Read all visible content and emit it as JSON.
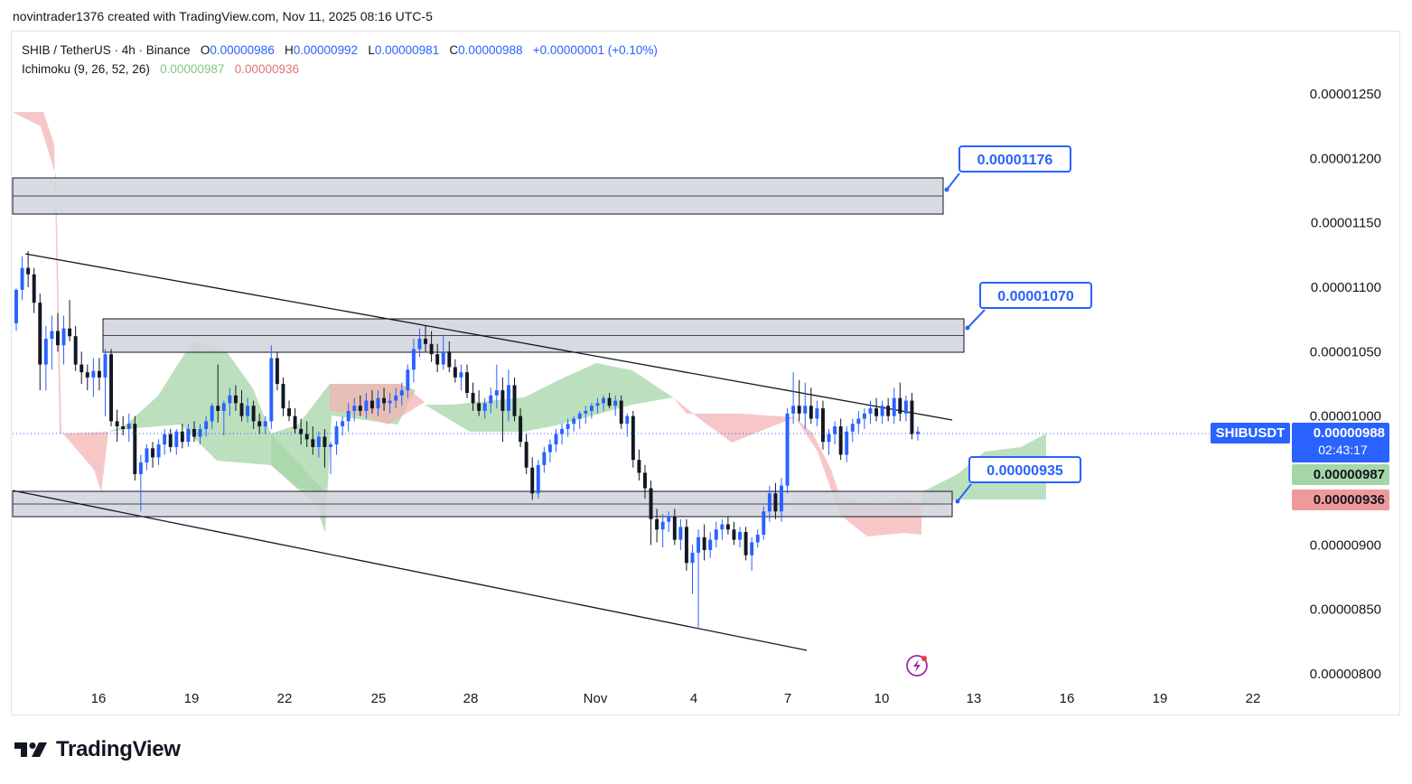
{
  "caption": "novintrader1376 created with TradingView.com, Nov 11, 2025 08:16 UTC-5",
  "legend": {
    "symbol": "SHIB / TetherUS · 4h · Binance",
    "o_label": "O",
    "o": "0.00000986",
    "h_label": "H",
    "h": "0.00000992",
    "l_label": "L",
    "l": "0.00000981",
    "c_label": "C",
    "c": "0.00000988",
    "change": "+0.00000001 (+0.10%)",
    "indicator": "Ichimoku (9, 26, 52, 26)",
    "ind_v1": "0.00000987",
    "ind_v2": "0.00000936"
  },
  "price_tags": {
    "symbol": "SHIBUSDT",
    "last": "0.00000988",
    "countdown": "02:43:17",
    "span_a": "0.00000987",
    "span_b": "0.00000936"
  },
  "callouts": [
    "0.00001176",
    "0.00001070",
    "0.00000935"
  ],
  "brand": "TradingView",
  "colors": {
    "up": "#2962ff",
    "down": "#131722",
    "cloud_bull": "#a5d6a7",
    "cloud_bear": "#f4b4b4",
    "zone": "#d1d4dc",
    "accent": "#2962ff"
  },
  "chart_data": {
    "type": "candlestick",
    "timeframe": "4h",
    "y_axis_ticks": [
      "0.00001250",
      "0.00001200",
      "0.00001150",
      "0.00001100",
      "0.00001050",
      "0.00001000",
      "0.00000950",
      "0.00000900",
      "0.00000850",
      "0.00000800"
    ],
    "x_axis_ticks": [
      "16",
      "19",
      "22",
      "25",
      "28",
      "Nov",
      "4",
      "7",
      "10",
      "13",
      "16",
      "19",
      "22"
    ],
    "ylim": [
      8e-06,
      1.25e-05
    ],
    "last_price": 9.88e-06,
    "zones": [
      {
        "x0": 13.8,
        "x1": 12.1,
        "y_low": 1.16e-05,
        "y_high": 1.188e-05
      },
      {
        "x0": 16.8,
        "x1": 12.8,
        "y_low": 1.05e-05,
        "y_high": 1.076e-05
      },
      {
        "x0": 13.8,
        "x1": 12.4,
        "y_low": 9.25e-06,
        "y_high": 9.44e-06
      }
    ],
    "trendlines": [
      {
        "x0": 14.3,
        "y0": 1.128e-05,
        "x1": 12.7,
        "y1": 9.96e-06
      },
      {
        "x0": 13.8,
        "y0": 9.38e-06,
        "x1": 7.6,
        "y1": 8.19e-06
      }
    ],
    "candles": [
      {
        "o": 1.072e-05,
        "h": 1.099e-05,
        "l": 1.066e-05,
        "c": 1.098e-05
      },
      {
        "o": 1.098e-05,
        "h": 1.124e-05,
        "l": 1.09e-05,
        "c": 1.115e-05
      },
      {
        "o": 1.115e-05,
        "h": 1.128e-05,
        "l": 1.1e-05,
        "c": 1.11e-05
      },
      {
        "o": 1.11e-05,
        "h": 1.115e-05,
        "l": 1.08e-05,
        "c": 1.088e-05
      },
      {
        "o": 1.088e-05,
        "h": 1.095e-05,
        "l": 1.02e-05,
        "c": 1.04e-05
      },
      {
        "o": 1.04e-05,
        "h": 1.07e-05,
        "l": 1.02e-05,
        "c": 1.06e-05
      },
      {
        "o": 1.06e-05,
        "h": 1.078e-05,
        "l": 1.036e-05,
        "c": 1.066e-05
      },
      {
        "o": 1.066e-05,
        "h": 1.08e-05,
        "l": 1.05e-05,
        "c": 1.055e-05
      },
      {
        "o": 1.055e-05,
        "h": 1.078e-05,
        "l": 1.04e-05,
        "c": 1.068e-05
      },
      {
        "o": 1.068e-05,
        "h": 1.09e-05,
        "l": 1.058e-05,
        "c": 1.062e-05
      },
      {
        "o": 1.062e-05,
        "h": 1.07e-05,
        "l": 1.035e-05,
        "c": 1.04e-05
      },
      {
        "o": 1.04e-05,
        "h": 1.05e-05,
        "l": 1.025e-05,
        "c": 1.034e-05
      },
      {
        "o": 1.034e-05,
        "h": 1.04e-05,
        "l": 1.02e-05,
        "c": 1.03e-05
      },
      {
        "o": 1.03e-05,
        "h": 1.045e-05,
        "l": 1.015e-05,
        "c": 1.035e-05
      },
      {
        "o": 1.035e-05,
        "h": 1.045e-05,
        "l": 1.02e-05,
        "c": 1.03e-05
      },
      {
        "o": 1.03e-05,
        "h": 1.052e-05,
        "l": 1e-05,
        "c": 1.048e-05
      },
      {
        "o": 1.048e-05,
        "h": 1.052e-05,
        "l": 9.92e-06,
        "c": 9.96e-06
      },
      {
        "o": 9.96e-06,
        "h": 1.005e-05,
        "l": 9.8e-06,
        "c": 9.92e-06
      },
      {
        "o": 9.92e-06,
        "h": 1e-05,
        "l": 9.85e-06,
        "c": 9.9e-06
      },
      {
        "o": 9.9e-06,
        "h": 1.002e-05,
        "l": 9.8e-06,
        "c": 9.94e-06
      },
      {
        "o": 9.94e-06,
        "h": 1e-05,
        "l": 9.5e-06,
        "c": 9.55e-06
      },
      {
        "o": 9.55e-06,
        "h": 9.7e-06,
        "l": 9.26e-06,
        "c": 9.64e-06
      },
      {
        "o": 9.64e-06,
        "h": 9.78e-06,
        "l": 9.58e-06,
        "c": 9.75e-06
      },
      {
        "o": 9.75e-06,
        "h": 9.8e-06,
        "l": 9.6e-06,
        "c": 9.68e-06
      },
      {
        "o": 9.68e-06,
        "h": 9.82e-06,
        "l": 9.62e-06,
        "c": 9.78e-06
      },
      {
        "o": 9.78e-06,
        "h": 9.9e-06,
        "l": 9.7e-06,
        "c": 9.86e-06
      },
      {
        "o": 9.86e-06,
        "h": 9.9e-06,
        "l": 9.72e-06,
        "c": 9.76e-06
      },
      {
        "o": 9.76e-06,
        "h": 9.9e-06,
        "l": 9.7e-06,
        "c": 9.88e-06
      },
      {
        "o": 9.88e-06,
        "h": 9.94e-06,
        "l": 9.75e-06,
        "c": 9.8e-06
      },
      {
        "o": 9.8e-06,
        "h": 9.94e-06,
        "l": 9.76e-06,
        "c": 9.9e-06
      },
      {
        "o": 9.9e-06,
        "h": 9.96e-06,
        "l": 9.8e-06,
        "c": 9.84e-06
      },
      {
        "o": 9.84e-06,
        "h": 9.94e-06,
        "l": 9.78e-06,
        "c": 9.9e-06
      },
      {
        "o": 9.9e-06,
        "h": 1e-05,
        "l": 9.84e-06,
        "c": 9.96e-06
      },
      {
        "o": 9.96e-06,
        "h": 1.01e-05,
        "l": 9.9e-06,
        "c": 1.008e-05
      },
      {
        "o": 1.008e-05,
        "h": 1.04e-05,
        "l": 9.95e-06,
        "c": 1.004e-05
      },
      {
        "o": 1.004e-05,
        "h": 1.012e-05,
        "l": 9.85e-06,
        "c": 1.01e-05
      },
      {
        "o": 1.01e-05,
        "h": 1.022e-05,
        "l": 1e-05,
        "c": 1.016e-05
      },
      {
        "o": 1.016e-05,
        "h": 1.024e-05,
        "l": 1.004e-05,
        "c": 1.01e-05
      },
      {
        "o": 1.01e-05,
        "h": 1.02e-05,
        "l": 9.96e-06,
        "c": 1e-05
      },
      {
        "o": 1e-05,
        "h": 1.014e-05,
        "l": 9.95e-06,
        "c": 1.008e-05
      },
      {
        "o": 1.008e-05,
        "h": 1.012e-05,
        "l": 9.9e-06,
        "c": 9.96e-06
      },
      {
        "o": 9.96e-06,
        "h": 1.002e-05,
        "l": 9.86e-06,
        "c": 9.92e-06
      },
      {
        "o": 9.92e-06,
        "h": 1e-05,
        "l": 9.86e-06,
        "c": 9.96e-06
      },
      {
        "o": 9.96e-06,
        "h": 1.055e-05,
        "l": 9.9e-06,
        "c": 1.045e-05
      },
      {
        "o": 1.045e-05,
        "h": 1.05e-05,
        "l": 1.02e-05,
        "c": 1.025e-05
      },
      {
        "o": 1.025e-05,
        "h": 1.03e-05,
        "l": 1e-05,
        "c": 1.006e-05
      },
      {
        "o": 1.006e-05,
        "h": 1.012e-05,
        "l": 9.96e-06,
        "c": 1e-05
      },
      {
        "o": 1e-05,
        "h": 1.006e-05,
        "l": 9.86e-06,
        "c": 9.9e-06
      },
      {
        "o": 9.9e-06,
        "h": 9.98e-06,
        "l": 9.78e-06,
        "c": 9.86e-06
      },
      {
        "o": 9.86e-06,
        "h": 9.96e-06,
        "l": 9.76e-06,
        "c": 9.82e-06
      },
      {
        "o": 9.82e-06,
        "h": 9.92e-06,
        "l": 9.7e-06,
        "c": 9.76e-06
      },
      {
        "o": 9.76e-06,
        "h": 9.88e-06,
        "l": 9.68e-06,
        "c": 9.84e-06
      },
      {
        "o": 9.84e-06,
        "h": 9.9e-06,
        "l": 9.6e-06,
        "c": 9.76e-06
      },
      {
        "o": 9.76e-06,
        "h": 9.8e-06,
        "l": 9.55e-06,
        "c": 9.78e-06
      },
      {
        "o": 9.78e-06,
        "h": 9.96e-06,
        "l": 9.7e-06,
        "c": 9.92e-06
      },
      {
        "o": 9.92e-06,
        "h": 1e-05,
        "l": 9.85e-06,
        "c": 9.96e-06
      },
      {
        "o": 9.96e-06,
        "h": 1.01e-05,
        "l": 9.88e-06,
        "c": 1.004e-05
      },
      {
        "o": 1.004e-05,
        "h": 1.014e-05,
        "l": 9.96e-06,
        "c": 1.008e-05
      },
      {
        "o": 1.008e-05,
        "h": 1.016e-05,
        "l": 1e-05,
        "c": 1.004e-05
      },
      {
        "o": 1.004e-05,
        "h": 1.018e-05,
        "l": 9.98e-06,
        "c": 1.012e-05
      },
      {
        "o": 1.012e-05,
        "h": 1.02e-05,
        "l": 1.002e-05,
        "c": 1.006e-05
      },
      {
        "o": 1.006e-05,
        "h": 1.02e-05,
        "l": 1e-05,
        "c": 1.014e-05
      },
      {
        "o": 1.014e-05,
        "h": 1.022e-05,
        "l": 1.004e-05,
        "c": 1.01e-05
      },
      {
        "o": 1.01e-05,
        "h": 1.018e-05,
        "l": 1.002e-05,
        "c": 1.012e-05
      },
      {
        "o": 1.012e-05,
        "h": 1.022e-05,
        "l": 1.006e-05,
        "c": 1.016e-05
      },
      {
        "o": 1.016e-05,
        "h": 1.026e-05,
        "l": 1.008e-05,
        "c": 1.02e-05
      },
      {
        "o": 1.02e-05,
        "h": 1.04e-05,
        "l": 1.014e-05,
        "c": 1.036e-05
      },
      {
        "o": 1.036e-05,
        "h": 1.06e-05,
        "l": 1.026e-05,
        "c": 1.052e-05
      },
      {
        "o": 1.052e-05,
        "h": 1.068e-05,
        "l": 1.046e-05,
        "c": 1.06e-05
      },
      {
        "o": 1.06e-05,
        "h": 1.07e-05,
        "l": 1.05e-05,
        "c": 1.056e-05
      },
      {
        "o": 1.056e-05,
        "h": 1.066e-05,
        "l": 1.042e-05,
        "c": 1.048e-05
      },
      {
        "o": 1.048e-05,
        "h": 1.056e-05,
        "l": 1.034e-05,
        "c": 1.04e-05
      },
      {
        "o": 1.04e-05,
        "h": 1.062e-05,
        "l": 1.036e-05,
        "c": 1.05e-05
      },
      {
        "o": 1.05e-05,
        "h": 1.058e-05,
        "l": 1.034e-05,
        "c": 1.038e-05
      },
      {
        "o": 1.038e-05,
        "h": 1.044e-05,
        "l": 1.026e-05,
        "c": 1.03e-05
      },
      {
        "o": 1.03e-05,
        "h": 1.04e-05,
        "l": 1.02e-05,
        "c": 1.034e-05
      },
      {
        "o": 1.034e-05,
        "h": 1.04e-05,
        "l": 1.014e-05,
        "c": 1.018e-05
      },
      {
        "o": 1.018e-05,
        "h": 1.026e-05,
        "l": 1.004e-05,
        "c": 1.01e-05
      },
      {
        "o": 1.01e-05,
        "h": 1.02e-05,
        "l": 1e-05,
        "c": 1.004e-05
      },
      {
        "o": 1.004e-05,
        "h": 1.014e-05,
        "l": 9.98e-06,
        "c": 1.01e-05
      },
      {
        "o": 1.01e-05,
        "h": 1.022e-05,
        "l": 1.002e-05,
        "c": 1.016e-05
      },
      {
        "o": 1.016e-05,
        "h": 1.04e-05,
        "l": 1.006e-05,
        "c": 1.02e-05
      },
      {
        "o": 1.02e-05,
        "h": 1.03e-05,
        "l": 9.8e-06,
        "c": 1.004e-05
      },
      {
        "o": 1.004e-05,
        "h": 1.036e-05,
        "l": 9.96e-06,
        "c": 1.024e-05
      },
      {
        "o": 1.024e-05,
        "h": 1.03e-05,
        "l": 9.96e-06,
        "c": 1e-05
      },
      {
        "o": 1e-05,
        "h": 1.006e-05,
        "l": 9.76e-06,
        "c": 9.8e-06
      },
      {
        "o": 9.8e-06,
        "h": 9.86e-06,
        "l": 9.55e-06,
        "c": 9.6e-06
      },
      {
        "o": 9.6e-06,
        "h": 9.68e-06,
        "l": 9.35e-06,
        "c": 9.4e-06
      },
      {
        "o": 9.4e-06,
        "h": 9.66e-06,
        "l": 9.36e-06,
        "c": 9.62e-06
      },
      {
        "o": 9.62e-06,
        "h": 9.76e-06,
        "l": 9.56e-06,
        "c": 9.72e-06
      },
      {
        "o": 9.72e-06,
        "h": 9.82e-06,
        "l": 9.64e-06,
        "c": 9.78e-06
      },
      {
        "o": 9.78e-06,
        "h": 9.9e-06,
        "l": 9.72e-06,
        "c": 9.86e-06
      },
      {
        "o": 9.86e-06,
        "h": 9.94e-06,
        "l": 9.78e-06,
        "c": 9.9e-06
      },
      {
        "o": 9.9e-06,
        "h": 9.98e-06,
        "l": 9.84e-06,
        "c": 9.94e-06
      },
      {
        "o": 9.94e-06,
        "h": 1e-05,
        "l": 9.88e-06,
        "c": 9.98e-06
      },
      {
        "o": 9.98e-06,
        "h": 1.004e-05,
        "l": 9.9e-06,
        "c": 1.002e-05
      },
      {
        "o": 1.002e-05,
        "h": 1.008e-05,
        "l": 9.94e-06,
        "c": 1.004e-05
      },
      {
        "o": 1.004e-05,
        "h": 1.01e-05,
        "l": 9.98e-06,
        "c": 1.008e-05
      },
      {
        "o": 1.008e-05,
        "h": 1.014e-05,
        "l": 1.002e-05,
        "c": 1.01e-05
      },
      {
        "o": 1.01e-05,
        "h": 1.016e-05,
        "l": 1.004e-05,
        "c": 1.014e-05
      },
      {
        "o": 1.014e-05,
        "h": 1.018e-05,
        "l": 1.006e-05,
        "c": 1.008e-05
      },
      {
        "o": 1.008e-05,
        "h": 1.016e-05,
        "l": 1e-05,
        "c": 1.012e-05
      },
      {
        "o": 1.012e-05,
        "h": 1.016e-05,
        "l": 9.9e-06,
        "c": 9.94e-06
      },
      {
        "o": 9.94e-06,
        "h": 1.002e-05,
        "l": 9.84e-06,
        "c": 1e-05
      },
      {
        "o": 1e-05,
        "h": 1.004e-05,
        "l": 9.6e-06,
        "c": 9.66e-06
      },
      {
        "o": 9.66e-06,
        "h": 9.74e-06,
        "l": 9.5e-06,
        "c": 9.56e-06
      },
      {
        "o": 9.56e-06,
        "h": 9.62e-06,
        "l": 9.36e-06,
        "c": 9.44e-06
      },
      {
        "o": 9.44e-06,
        "h": 9.5e-06,
        "l": 9e-06,
        "c": 9.2e-06
      },
      {
        "o": 9.2e-06,
        "h": 9.28e-06,
        "l": 9.02e-06,
        "c": 9.12e-06
      },
      {
        "o": 9.12e-06,
        "h": 9.24e-06,
        "l": 8.98e-06,
        "c": 9.18e-06
      },
      {
        "o": 9.18e-06,
        "h": 9.26e-06,
        "l": 9.1e-06,
        "c": 9.22e-06
      },
      {
        "o": 9.22e-06,
        "h": 9.28e-06,
        "l": 9e-06,
        "c": 9.04e-06
      },
      {
        "o": 9.04e-06,
        "h": 9.2e-06,
        "l": 8.96e-06,
        "c": 9.14e-06
      },
      {
        "o": 9.14e-06,
        "h": 9.2e-06,
        "l": 8.8e-06,
        "c": 8.86e-06
      },
      {
        "o": 8.86e-06,
        "h": 9e-06,
        "l": 8.62e-06,
        "c": 8.94e-06
      },
      {
        "o": 8.94e-06,
        "h": 9.12e-06,
        "l": 8.36e-06,
        "c": 9.06e-06
      },
      {
        "o": 9.06e-06,
        "h": 9.16e-06,
        "l": 8.88e-06,
        "c": 8.96e-06
      },
      {
        "o": 8.96e-06,
        "h": 9.1e-06,
        "l": 8.9e-06,
        "c": 9.04e-06
      },
      {
        "o": 9.04e-06,
        "h": 9.18e-06,
        "l": 8.98e-06,
        "c": 9.12e-06
      },
      {
        "o": 9.12e-06,
        "h": 9.2e-06,
        "l": 9.04e-06,
        "c": 9.16e-06
      },
      {
        "o": 9.16e-06,
        "h": 9.22e-06,
        "l": 9.08e-06,
        "c": 9.12e-06
      },
      {
        "o": 9.12e-06,
        "h": 9.18e-06,
        "l": 9e-06,
        "c": 9.04e-06
      },
      {
        "o": 9.04e-06,
        "h": 9.14e-06,
        "l": 8.98e-06,
        "c": 9.1e-06
      },
      {
        "o": 9.1e-06,
        "h": 9.14e-06,
        "l": 8.88e-06,
        "c": 8.92e-06
      },
      {
        "o": 8.92e-06,
        "h": 9.06e-06,
        "l": 8.8e-06,
        "c": 9.02e-06
      },
      {
        "o": 9.02e-06,
        "h": 9.12e-06,
        "l": 8.98e-06,
        "c": 9.08e-06
      },
      {
        "o": 9.08e-06,
        "h": 9.3e-06,
        "l": 9.04e-06,
        "c": 9.26e-06
      },
      {
        "o": 9.26e-06,
        "h": 9.46e-06,
        "l": 9.18e-06,
        "c": 9.4e-06
      },
      {
        "o": 9.4e-06,
        "h": 9.48e-06,
        "l": 9.2e-06,
        "c": 9.26e-06
      },
      {
        "o": 9.26e-06,
        "h": 9.52e-06,
        "l": 9.18e-06,
        "c": 9.46e-06
      },
      {
        "o": 9.46e-06,
        "h": 1.006e-05,
        "l": 9.4e-06,
        "c": 1.002e-05
      },
      {
        "o": 1.002e-05,
        "h": 1.034e-05,
        "l": 9.94e-06,
        "c": 1.008e-05
      },
      {
        "o": 1.008e-05,
        "h": 1.028e-05,
        "l": 9.96e-06,
        "c": 1.002e-05
      },
      {
        "o": 1.002e-05,
        "h": 1.026e-05,
        "l": 9.9e-06,
        "c": 1.008e-05
      },
      {
        "o": 1.008e-05,
        "h": 1.022e-05,
        "l": 9.94e-06,
        "c": 9.98e-06
      },
      {
        "o": 9.98e-06,
        "h": 1.012e-05,
        "l": 9.92e-06,
        "c": 1.006e-05
      },
      {
        "o": 1.006e-05,
        "h": 1.012e-05,
        "l": 9.74e-06,
        "c": 9.8e-06
      },
      {
        "o": 9.8e-06,
        "h": 9.9e-06,
        "l": 9.7e-06,
        "c": 9.86e-06
      },
      {
        "o": 9.86e-06,
        "h": 9.96e-06,
        "l": 9.78e-06,
        "c": 9.92e-06
      },
      {
        "o": 9.92e-06,
        "h": 9.98e-06,
        "l": 9.66e-06,
        "c": 9.7e-06
      },
      {
        "o": 9.7e-06,
        "h": 9.92e-06,
        "l": 9.64e-06,
        "c": 9.88e-06
      },
      {
        "o": 9.88e-06,
        "h": 9.98e-06,
        "l": 9.8e-06,
        "c": 9.94e-06
      },
      {
        "o": 9.94e-06,
        "h": 1.004e-05,
        "l": 9.86e-06,
        "c": 9.98e-06
      },
      {
        "o": 9.98e-06,
        "h": 1.006e-05,
        "l": 9.9e-06,
        "c": 1.002e-05
      },
      {
        "o": 1.002e-05,
        "h": 1.012e-05,
        "l": 9.94e-06,
        "c": 1.006e-05
      },
      {
        "o": 1.006e-05,
        "h": 1.014e-05,
        "l": 9.96e-06,
        "c": 1e-05
      },
      {
        "o": 1e-05,
        "h": 1.012e-05,
        "l": 9.94e-06,
        "c": 1.008e-05
      },
      {
        "o": 1.008e-05,
        "h": 1.014e-05,
        "l": 9.96e-06,
        "c": 1e-05
      },
      {
        "o": 1e-05,
        "h": 1.022e-05,
        "l": 9.94e-06,
        "c": 1.014e-05
      },
      {
        "o": 1.014e-05,
        "h": 1.026e-05,
        "l": 9.96e-06,
        "c": 1.002e-05
      },
      {
        "o": 1.002e-05,
        "h": 1.016e-05,
        "l": 9.96e-06,
        "c": 1.012e-05
      },
      {
        "o": 1.012e-05,
        "h": 1.018e-05,
        "l": 9.82e-06,
        "c": 9.86e-06
      },
      {
        "o": 9.86e-06,
        "h": 9.92e-06,
        "l": 9.81e-06,
        "c": 9.88e-06
      }
    ],
    "cloud_segments": [
      {
        "from": 0,
        "to": 12,
        "color": "bear",
        "a": [
          1.235e-05,
          1.232e-05,
          1.225e-05,
          1.21e-05,
          1.15e-05,
          1.02e-05,
          9.92e-06,
          9.88e-06,
          9.85e-06,
          9.82e-06,
          9.8e-06,
          9.75e-06,
          9.75e-06
        ],
        "b": [
          1.235e-05,
          1.235e-05,
          1.235e-05,
          1.235e-05,
          1.235e-05,
          1.035e-05,
          9.85e-06,
          9.6e-06,
          9.5e-06,
          9.45e-06,
          9.45e-06,
          9.42e-06,
          9.4e-06
        ]
      }
    ]
  }
}
